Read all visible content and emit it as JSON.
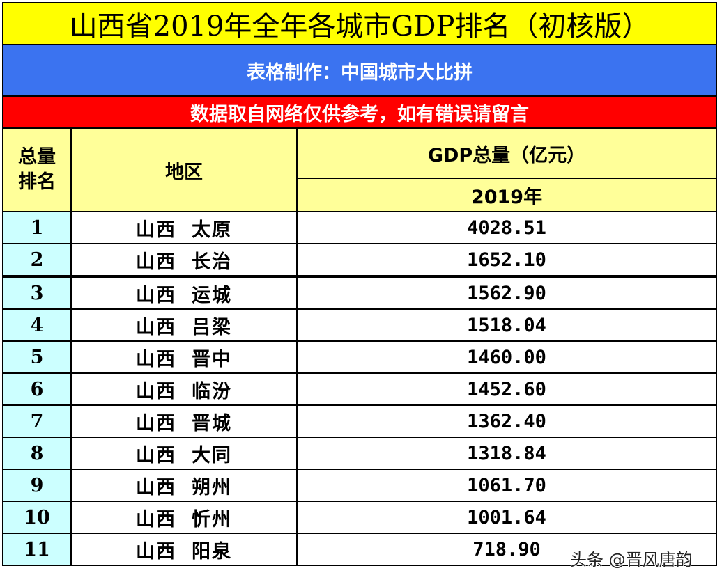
{
  "title": "山西省2019年全年各城市GDP排名（初核版）",
  "credit": "表格制作：中国城市大比拼",
  "note": "数据取自网络仅供参考，如有错误请留言",
  "colors": {
    "title_bg": "#ffff00",
    "credit_bg": "#3b73f0",
    "note_bg": "#ff0000",
    "header_bg": "#ffff99",
    "rank_bg": "#ccffff"
  },
  "table": {
    "headers": {
      "rank_line1": "总量",
      "rank_line2": "排名",
      "region": "地区",
      "gdp": "GDP总量（亿元）",
      "year": "2019年"
    },
    "rows": [
      {
        "rank": "1",
        "province": "山西",
        "city": "太原",
        "gdp": "4028.51"
      },
      {
        "rank": "2",
        "province": "山西",
        "city": "长治",
        "gdp": "1652.10"
      },
      {
        "rank": "3",
        "province": "山西",
        "city": "运城",
        "gdp": "1562.90"
      },
      {
        "rank": "4",
        "province": "山西",
        "city": "吕梁",
        "gdp": "1518.04"
      },
      {
        "rank": "5",
        "province": "山西",
        "city": "晋中",
        "gdp": "1460.00"
      },
      {
        "rank": "6",
        "province": "山西",
        "city": "临汾",
        "gdp": "1452.60"
      },
      {
        "rank": "7",
        "province": "山西",
        "city": "晋城",
        "gdp": "1362.40"
      },
      {
        "rank": "8",
        "province": "山西",
        "city": "大同",
        "gdp": "1318.84"
      },
      {
        "rank": "9",
        "province": "山西",
        "city": "朔州",
        "gdp": "1061.70"
      },
      {
        "rank": "10",
        "province": "山西",
        "city": "忻州",
        "gdp": "1001.64"
      },
      {
        "rank": "11",
        "province": "山西",
        "city": "阳泉",
        "gdp": "718.90"
      }
    ]
  },
  "watermark": "头条 @晋风唐韵"
}
